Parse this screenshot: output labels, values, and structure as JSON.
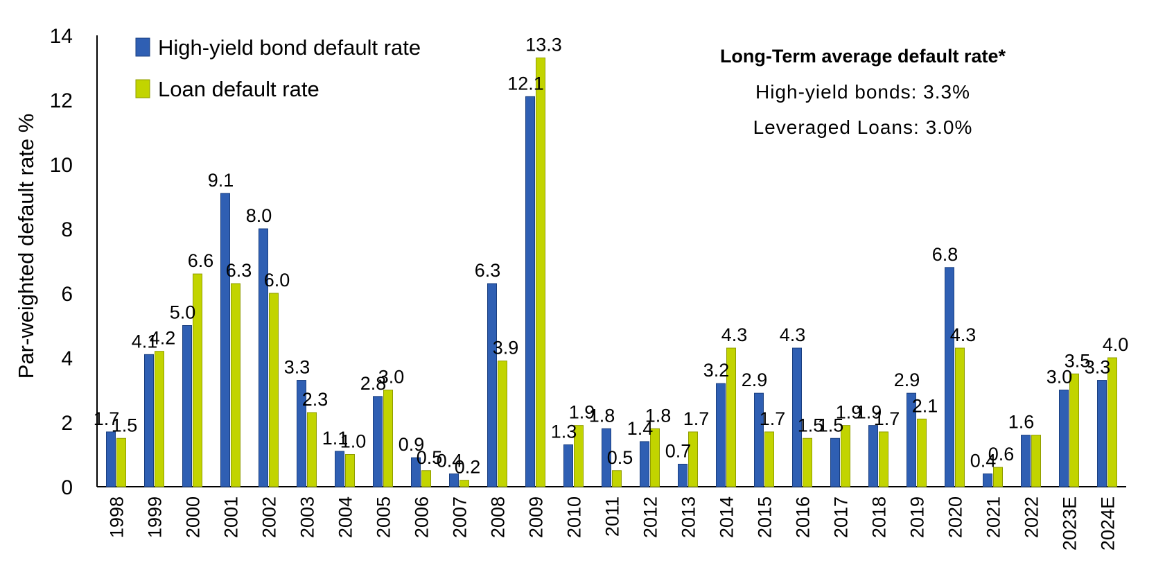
{
  "chart_data": {
    "type": "bar",
    "categories": [
      "1998",
      "1999",
      "2000",
      "2001",
      "2002",
      "2003",
      "2004",
      "2005",
      "2006",
      "2007",
      "2008",
      "2009",
      "2010",
      "2011",
      "2012",
      "2013",
      "2014",
      "2015",
      "2016",
      "2017",
      "2018",
      "2019",
      "2020",
      "2021",
      "2022",
      "2023E",
      "2024E"
    ],
    "series": [
      {
        "name": "High-yield bond default rate",
        "color": "#2f5fb3",
        "values": [
          1.7,
          4.1,
          5.0,
          9.1,
          8.0,
          3.3,
          1.1,
          2.8,
          0.9,
          0.4,
          6.3,
          12.1,
          1.3,
          1.8,
          1.4,
          0.7,
          3.2,
          2.9,
          4.3,
          1.5,
          1.9,
          2.9,
          6.8,
          0.4,
          1.6,
          3.0,
          3.3
        ],
        "labels": [
          "1.7",
          "4.1",
          "5.0",
          "9.1",
          "8.0",
          "3.3",
          "1.1",
          "2.8",
          "0.9",
          "0.4",
          "6.3",
          "12.1",
          "1.3",
          "1.8",
          "1.4",
          "0.7",
          "3.2",
          "2.9",
          "4.3",
          "1.5",
          "1.9",
          "2.9",
          "6.8",
          "0.4",
          "1.6",
          "3.0",
          "3.3"
        ]
      },
      {
        "name": "Loan default rate",
        "color": "#c2d400",
        "values": [
          1.5,
          4.2,
          6.6,
          6.3,
          6.0,
          2.3,
          1.0,
          3.0,
          0.5,
          0.2,
          3.9,
          13.3,
          1.9,
          0.5,
          1.8,
          1.7,
          4.3,
          1.7,
          1.5,
          1.9,
          1.7,
          2.1,
          4.3,
          0.6,
          1.6,
          3.5,
          4.0
        ],
        "labels": [
          "1.5",
          "4.2",
          "6.6",
          "6.3",
          "6.0",
          "2.3",
          "1.0",
          "3.0",
          "0.5",
          "0.2",
          "3.9",
          "13.3",
          "1.9",
          "0.5",
          "1.8",
          "1.7",
          "4.3",
          "1.7",
          "1.5",
          "1.9",
          "1.7",
          "2.1",
          "4.3",
          "0.6",
          "",
          "3.5",
          "4.0"
        ]
      }
    ],
    "title": "",
    "xlabel": "",
    "ylabel": "Par-weighted default rate %",
    "ylim": [
      0,
      14
    ],
    "yticks": [
      "0",
      "2",
      "4",
      "6",
      "8",
      "10",
      "12",
      "14"
    ],
    "grid": false,
    "legend_position": "top-left",
    "annotation": {
      "title": "Long-Term average default rate*",
      "lines": [
        "High-yield bonds: 3.3%",
        "Leveraged Loans: 3.0%"
      ]
    }
  }
}
